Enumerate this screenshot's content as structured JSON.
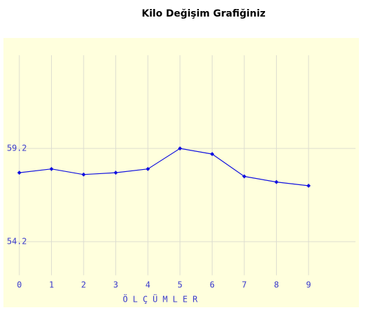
{
  "chart_data": {
    "type": "line",
    "title": "Kilo Değişim Grafiğiniz",
    "x_label": "Ö L Ç Ü M L E R",
    "x": [
      0,
      1,
      2,
      3,
      4,
      5,
      6,
      7,
      8,
      9
    ],
    "series": [
      {
        "color": "#1010e0",
        "values": [
          57.9,
          58.1,
          57.8,
          57.9,
          58.1,
          59.2,
          58.9,
          57.7,
          57.4,
          57.2
        ]
      }
    ],
    "xlim": [
      0,
      9
    ],
    "xticks": [
      0,
      1,
      2,
      3,
      4,
      5,
      6,
      7,
      8,
      9
    ],
    "ylim": [
      52.4,
      64.2
    ],
    "yticks": [
      54.2,
      59.2
    ],
    "grid": true
  }
}
